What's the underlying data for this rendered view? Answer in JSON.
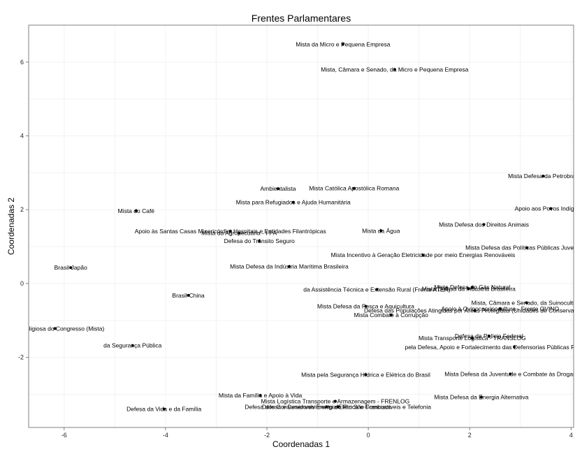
{
  "chart_data": {
    "type": "scatter",
    "title": "Frentes Parlamentares",
    "xlabel": "Coordenadas 1",
    "ylabel": "Coordenadas 2",
    "xlim": [
      -6.7,
      4.05
    ],
    "ylim": [
      -3.9,
      7.0
    ],
    "x_ticks": [
      -6,
      -4,
      -2,
      0,
      2,
      4
    ],
    "y_ticks": [
      -2,
      0,
      2,
      4,
      6
    ],
    "grid": true,
    "points": [
      {
        "x": -0.5,
        "y": 6.48,
        "label": "Mista da Micro e Pequena Empresa"
      },
      {
        "x": 0.52,
        "y": 5.8,
        "label": "Mista, Câmara e Senado, da Micro e Pequena Empresa"
      },
      {
        "x": 3.45,
        "y": 2.91,
        "label": "Mista Defesa da Petrobras"
      },
      {
        "x": -1.78,
        "y": 2.57,
        "label": "Ambientalista"
      },
      {
        "x": -0.28,
        "y": 2.58,
        "label": "Mista Católica Apostólica Romana"
      },
      {
        "x": -1.48,
        "y": 2.2,
        "label": "Mista para Refugiados e Ajuda Humanitária"
      },
      {
        "x": 3.6,
        "y": 2.03,
        "label": "Apoio aos Povos Indígenas"
      },
      {
        "x": -4.58,
        "y": 1.97,
        "label": "Mista do Café"
      },
      {
        "x": 2.28,
        "y": 1.6,
        "label": "Mista Defesa dos Direitos Animais"
      },
      {
        "x": 0.25,
        "y": 1.43,
        "label": "Mista da Água"
      },
      {
        "x": -2.72,
        "y": 1.42,
        "label": "Apoio às Santas Casas Misericórdia, Hospitais e Entidades Filantrópicas"
      },
      {
        "x": -2.55,
        "y": 1.37,
        "label": "Mista da Agropecuária - FPA"
      },
      {
        "x": -2.15,
        "y": 1.15,
        "label": "Defesa do Trânsito Seguro"
      },
      {
        "x": 3.13,
        "y": 0.97,
        "label": "Mista Defesa das Políticas Públicas Juventude"
      },
      {
        "x": 1.08,
        "y": 0.77,
        "label": "Mista Incentivo à Geração Eletricidade por meio Energias Renováveis"
      },
      {
        "x": -5.87,
        "y": 0.43,
        "label": "Brasil-Japão"
      },
      {
        "x": -1.56,
        "y": 0.46,
        "label": "Mista Defesa da Indústria Marítima Brasileira"
      },
      {
        "x": 0.17,
        "y": -0.16,
        "label": "da Assistência Técnica e Extensão Rural (Frente ATER)"
      },
      {
        "x": 1.98,
        "y": -0.14,
        "label": "Mista Defesa da Indústria Brasileira"
      },
      {
        "x": 2.05,
        "y": -0.1,
        "label": "Mista Defesa do Gás Natural"
      },
      {
        "x": -3.55,
        "y": -0.32,
        "label": "Brasil-China"
      },
      {
        "x": 3.12,
        "y": -0.52,
        "label": "Mista, Câmara e Senado, da Suinocultura"
      },
      {
        "x": -0.05,
        "y": -0.62,
        "label": "Mista Defesa da Pesca e Aquicultura"
      },
      {
        "x": 2.6,
        "y": -0.68,
        "label": "Apoio à Ovinocaprinocultura - Frente OVINO"
      },
      {
        "x": 2.1,
        "y": -0.73,
        "label": "Defesa das Populações Atingidas por Áreas Protegidas (Unidades de Conservação)"
      },
      {
        "x": 0.45,
        "y": -0.85,
        "label": "Mista Combate à Corrupção"
      },
      {
        "x": -6.18,
        "y": -1.22,
        "label": "Mista Religiosa do Congresso (Mista)"
      },
      {
        "x": 2.38,
        "y": -1.42,
        "label": "Defesa da Polícia Federal"
      },
      {
        "x": 2.05,
        "y": -1.48,
        "label": "Mista Transporte Logística - TRANSLOG"
      },
      {
        "x": -4.65,
        "y": -1.68,
        "label": "da Segurança Pública"
      },
      {
        "x": 2.88,
        "y": -1.72,
        "label": "pela Defesa, Apoio e Fortalecimento das Defensorias Públicas Federal e Estaduais"
      },
      {
        "x": 2.8,
        "y": -2.45,
        "label": "Mista Defesa da Juventude e Combate às Drogas"
      },
      {
        "x": -0.05,
        "y": -2.47,
        "label": "Mista pela Segurança Hídrica e Elétrica do Brasil"
      },
      {
        "x": -2.13,
        "y": -3.03,
        "label": "Mista da Família e Apoio à Vida"
      },
      {
        "x": 2.23,
        "y": -3.08,
        "label": "Mista Defesa da Energia Alternativa"
      },
      {
        "x": -0.65,
        "y": -3.19,
        "label": "Mista Logística Transporte e Armazenagem - FRENLOG"
      },
      {
        "x": -0.82,
        "y": -3.34,
        "label": "Defesa e Desenvolvimento da Rio São Francisco"
      },
      {
        "x": -0.6,
        "y": -3.34,
        "label": "Defesa dos Consumidores Energia Elétrica e Combustíveis e Telefonia"
      },
      {
        "x": -4.03,
        "y": -3.4,
        "label": "Defesa da Vida e da Família"
      }
    ]
  }
}
